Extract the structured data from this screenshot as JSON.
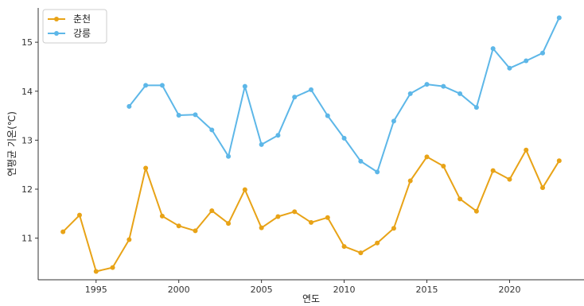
{
  "chart_data": {
    "type": "line",
    "title": "",
    "xlabel": "연도",
    "ylabel": "연평균 기온(℃)",
    "xlim": [
      1991.5,
      2024.5
    ],
    "ylim": [
      10.15,
      15.7
    ],
    "xticks": [
      1995,
      2000,
      2005,
      2010,
      2015,
      2020
    ],
    "yticks": [
      11,
      12,
      13,
      14,
      15
    ],
    "grid": false,
    "legend": "top-left",
    "series": [
      {
        "name": "춘천",
        "color": "#E8A317",
        "x": [
          1993,
          1994,
          1995,
          1996,
          1997,
          1998,
          1999,
          2000,
          2001,
          2002,
          2003,
          2004,
          2005,
          2006,
          2007,
          2008,
          2009,
          2010,
          2011,
          2012,
          2013,
          2014,
          2015,
          2016,
          2017,
          2018,
          2019,
          2020,
          2021,
          2022,
          2023
        ],
        "values": [
          11.13,
          11.47,
          10.32,
          10.4,
          10.97,
          12.43,
          11.45,
          11.25,
          11.15,
          11.56,
          11.3,
          11.99,
          11.21,
          11.44,
          11.54,
          11.32,
          11.42,
          10.83,
          10.7,
          10.9,
          11.2,
          12.17,
          12.66,
          12.47,
          11.8,
          11.55,
          12.38,
          12.2,
          12.8,
          12.03,
          12.58
        ]
      },
      {
        "name": "강릉",
        "color": "#5DB7E8",
        "x": [
          1997,
          1998,
          1999,
          2000,
          2001,
          2002,
          2003,
          2004,
          2005,
          2006,
          2007,
          2008,
          2009,
          2010,
          2011,
          2012,
          2013,
          2014,
          2015,
          2016,
          2017,
          2018,
          2019,
          2020,
          2021,
          2022,
          2023
        ],
        "values": [
          13.69,
          14.12,
          14.12,
          13.51,
          13.52,
          13.21,
          12.67,
          14.1,
          12.91,
          13.1,
          13.88,
          14.03,
          13.5,
          13.04,
          12.57,
          12.35,
          13.39,
          13.95,
          14.14,
          14.1,
          13.95,
          13.67,
          14.87,
          14.47,
          14.62,
          14.78,
          15.5
        ]
      }
    ]
  }
}
